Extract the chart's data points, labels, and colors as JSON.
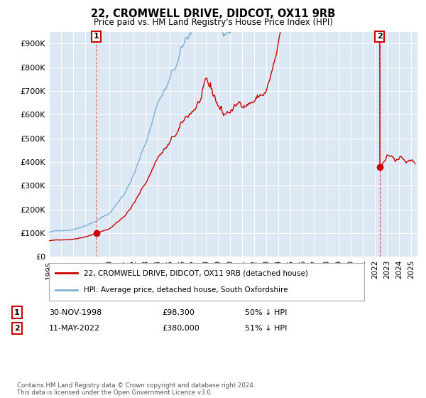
{
  "title": "22, CROMWELL DRIVE, DIDCOT, OX11 9RB",
  "subtitle": "Price paid vs. HM Land Registry's House Price Index (HPI)",
  "ylim": [
    0,
    950000
  ],
  "yticks": [
    0,
    100000,
    200000,
    300000,
    400000,
    500000,
    600000,
    700000,
    800000,
    900000
  ],
  "ytick_labels": [
    "£0",
    "£100K",
    "£200K",
    "£300K",
    "£400K",
    "£500K",
    "£600K",
    "£700K",
    "£800K",
    "£900K"
  ],
  "legend_labels": [
    "22, CROMWELL DRIVE, DIDCOT, OX11 9RB (detached house)",
    "HPI: Average price, detached house, South Oxfordshire"
  ],
  "sale_color": "#cc0000",
  "hpi_color": "#7bafd4",
  "plot_bg_color": "#dce9f5",
  "fig_bg_color": "#ffffff",
  "grid_color": "#ffffff",
  "sale1_x": 1998.917,
  "sale1_y": 98300,
  "sale2_x": 2022.36,
  "sale2_y": 380000,
  "annotation1_date": "30-NOV-1998",
  "annotation1_price": "£98,300",
  "annotation1_hpi": "50% ↓ HPI",
  "annotation2_date": "11-MAY-2022",
  "annotation2_price": "£380,000",
  "annotation2_hpi": "51% ↓ HPI",
  "footer": "Contains HM Land Registry data © Crown copyright and database right 2024.\nThis data is licensed under the Open Government Licence v3.0.",
  "xlim_start": 1995,
  "xlim_end": 2025.5
}
